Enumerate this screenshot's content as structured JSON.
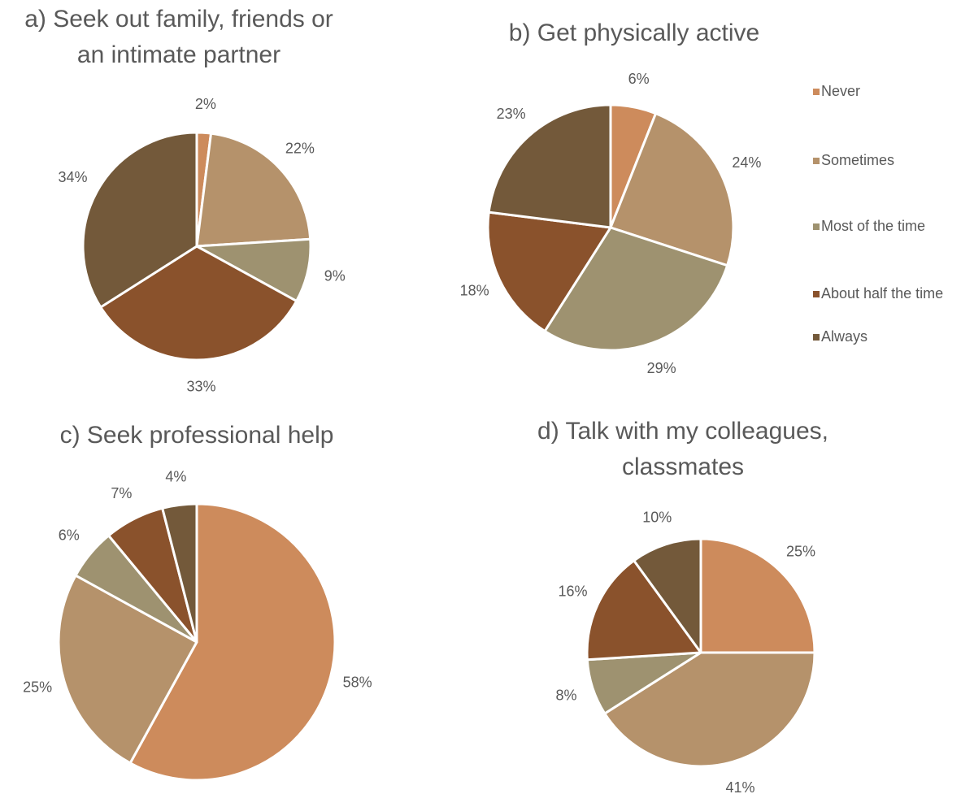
{
  "legend": {
    "categories": [
      "Never",
      "Sometimes",
      "Most of the time",
      "About half the time",
      "Always"
    ],
    "colors": [
      "#cd8b5c",
      "#b5926b",
      "#9e9270",
      "#8a522c",
      "#73593a"
    ]
  },
  "chart_data": [
    {
      "type": "pie",
      "title": [
        "a) Seek out family, friends or",
        "an intimate partner"
      ],
      "values": [
        2,
        22,
        9,
        33,
        34
      ],
      "value_labels": [
        "2%",
        "22%",
        "9%",
        "33%",
        "34%"
      ]
    },
    {
      "type": "pie",
      "title": [
        "b) Get physically active"
      ],
      "values": [
        6,
        24,
        29,
        18,
        23
      ],
      "value_labels": [
        "6%",
        "24%",
        "29%",
        "18%",
        "23%"
      ]
    },
    {
      "type": "pie",
      "title": [
        "c) Seek professional help"
      ],
      "values": [
        58,
        25,
        6,
        7,
        4
      ],
      "value_labels": [
        "58%",
        "25%",
        "6%",
        "7%",
        "4%"
      ]
    },
    {
      "type": "pie",
      "title": [
        "d) Talk with my colleagues,",
        "classmates"
      ],
      "values": [
        25,
        41,
        8,
        16,
        10
      ],
      "value_labels": [
        "25%",
        "41%",
        "8%",
        "16%",
        "10%"
      ]
    }
  ]
}
